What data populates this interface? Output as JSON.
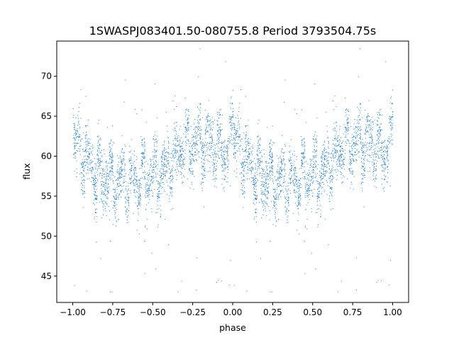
{
  "chart_data": {
    "type": "scatter",
    "title": "1SWASPJ083401.50-080755.8 Period 3793504.75s",
    "xlabel": "phase",
    "ylabel": "flux",
    "xlim": [
      -1.1,
      1.1
    ],
    "ylim": [
      41.7,
      74.4
    ],
    "x_ticks": [
      -1.0,
      -0.75,
      -0.5,
      -0.25,
      0.0,
      0.25,
      0.5,
      0.75,
      1.0
    ],
    "x_tick_labels": [
      "−1.00",
      "−0.75",
      "−0.50",
      "−0.25",
      "0.00",
      "0.25",
      "0.50",
      "0.75",
      "1.00"
    ],
    "y_ticks": [
      45,
      50,
      55,
      60,
      65,
      70
    ],
    "y_tick_labels": [
      "45",
      "50",
      "55",
      "60",
      "65",
      "70"
    ],
    "grid": false,
    "marker_color": "#1f77b4",
    "marker_size": 1,
    "description": "Phase-folded light curve shown twice (phase -1 to 1); dense band of points between flux ~53 and ~67, with scattered outliers down to ~43 and up to ~73.",
    "folded_profile": {
      "phase": [
        0.0,
        0.05,
        0.1,
        0.15,
        0.2,
        0.25,
        0.3,
        0.35,
        0.4,
        0.45,
        0.5,
        0.55,
        0.6,
        0.65,
        0.7,
        0.75,
        0.8,
        0.85,
        0.9,
        0.95,
        1.0
      ],
      "flux": [
        62.5,
        61.0,
        59.0,
        58.0,
        57.5,
        57.0,
        56.8,
        57.0,
        57.2,
        57.5,
        57.5,
        58.0,
        59.0,
        60.0,
        61.0,
        61.5,
        62.0,
        61.5,
        61.0,
        60.5,
        62.5
      ]
    }
  }
}
